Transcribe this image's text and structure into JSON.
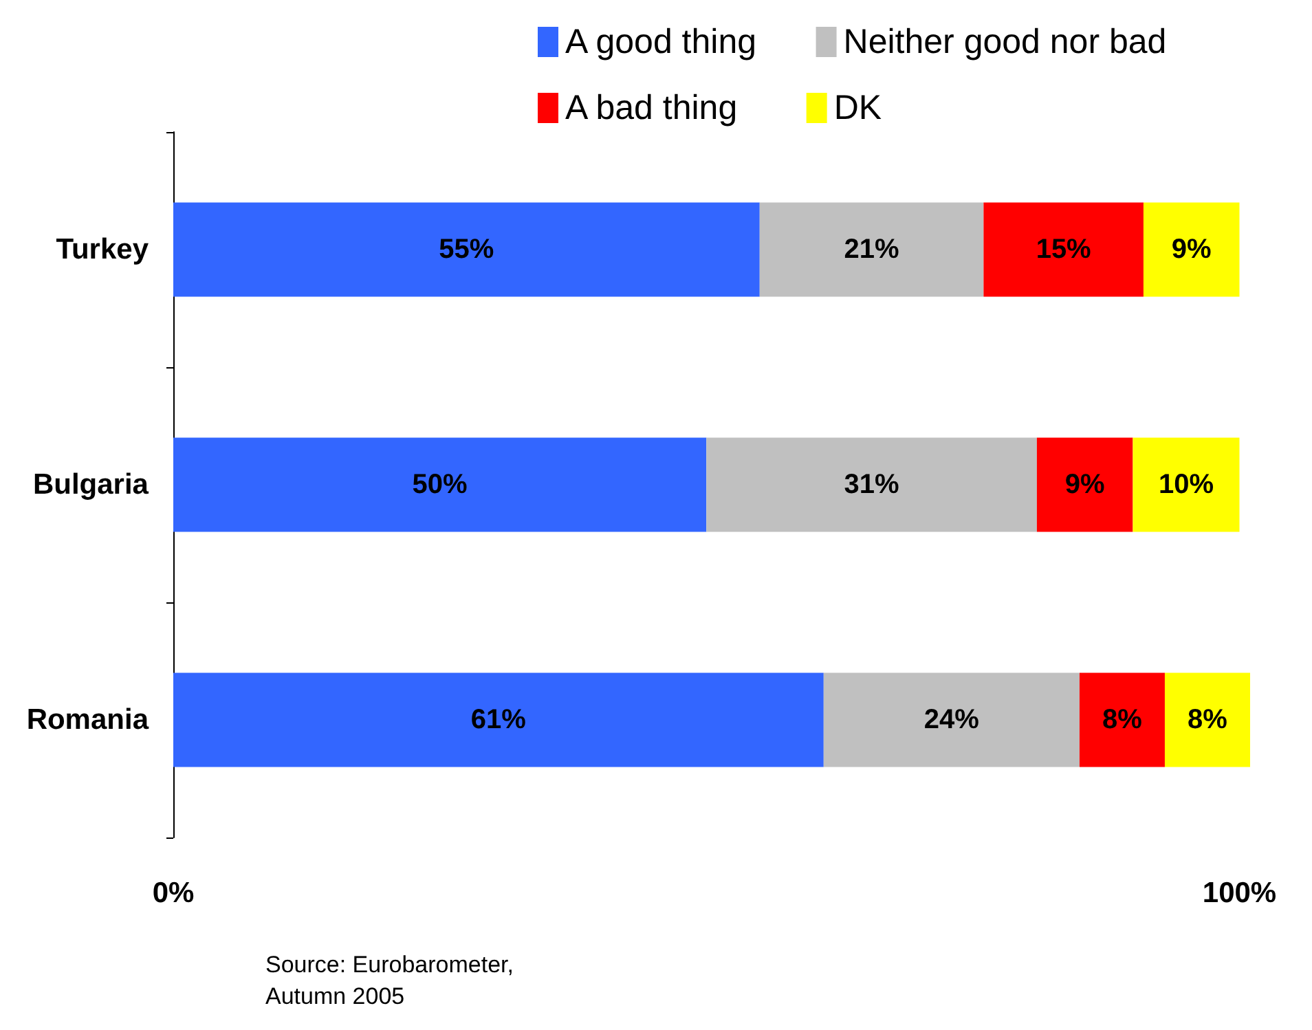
{
  "chart_data": {
    "type": "bar",
    "orientation": "horizontal",
    "stacked": true,
    "categories": [
      "Turkey",
      "Bulgaria",
      "Romania"
    ],
    "series": [
      {
        "name": "A good thing",
        "color": "#3366ff",
        "values": [
          55,
          50,
          61
        ],
        "value_labels": [
          "55%",
          "50%",
          "61%"
        ]
      },
      {
        "name": "Neither good nor bad",
        "color": "#c0c0c0",
        "values": [
          21,
          31,
          24
        ],
        "value_labels": [
          "21%",
          "31%",
          "24%"
        ]
      },
      {
        "name": "A bad thing",
        "color": "#ff0000",
        "values": [
          15,
          9,
          8
        ],
        "value_labels": [
          "15%",
          "9%",
          "8%"
        ]
      },
      {
        "name": "DK",
        "color": "#ffff00",
        "values": [
          9,
          10,
          8
        ],
        "value_labels": [
          "9%",
          "10%",
          "8%"
        ]
      }
    ],
    "xlim": [
      0,
      101
    ],
    "xticks": [
      {
        "value": 0,
        "label": "0%"
      },
      {
        "value": 100,
        "label": "100%"
      }
    ],
    "legend": "top right",
    "grid": false,
    "annotations": [
      "Source: Eurobarometer, Autumn 2005"
    ]
  }
}
